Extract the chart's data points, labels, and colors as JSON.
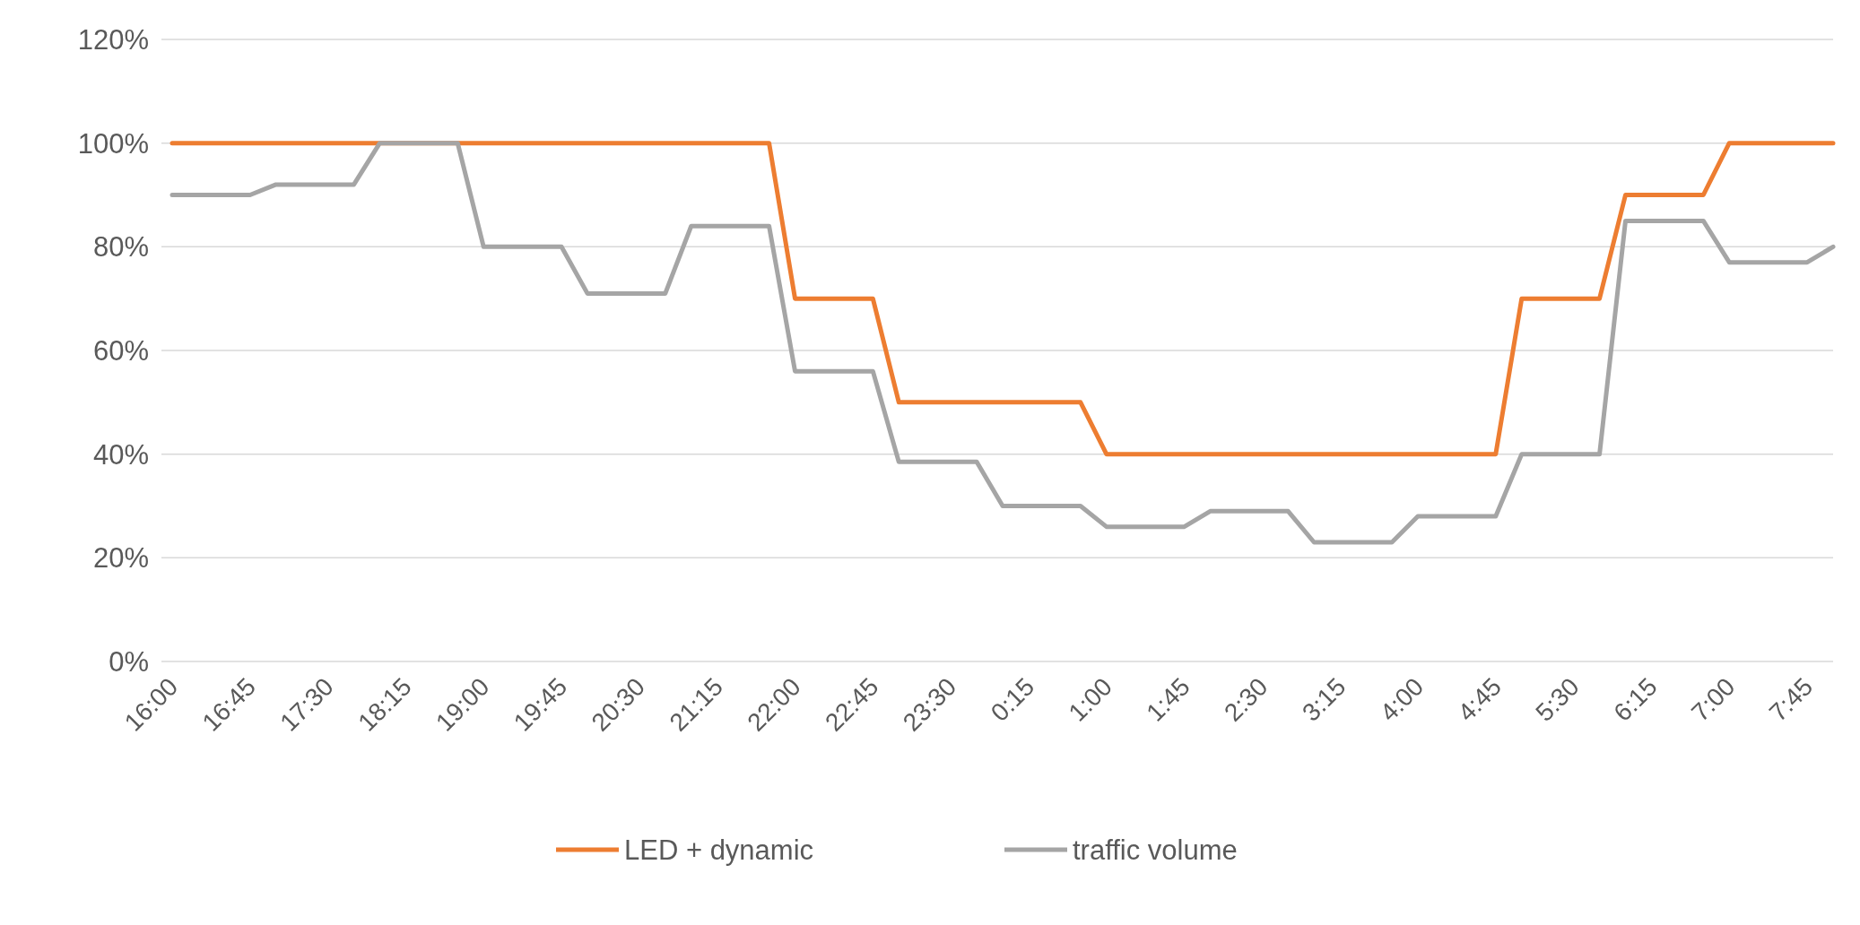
{
  "chart_data": {
    "type": "line",
    "categories": [
      "16:00",
      null,
      null,
      "16:45",
      null,
      null,
      "17:30",
      null,
      null,
      "18:15",
      null,
      null,
      "19:00",
      null,
      null,
      "19:45",
      null,
      null,
      "20:30",
      null,
      null,
      "21:15",
      null,
      null,
      "22:00",
      null,
      null,
      "22:45",
      null,
      null,
      "23:30",
      null,
      null,
      "0:15",
      null,
      null,
      "1:00",
      null,
      null,
      "1:45",
      null,
      null,
      "2:30",
      null,
      null,
      "3:15",
      null,
      null,
      "4:00",
      null,
      null,
      "4:45",
      null,
      null,
      "5:30",
      null,
      null,
      "6:15",
      null,
      null,
      "7:00",
      null,
      null,
      "7:45",
      null
    ],
    "series": [
      {
        "name": "LED + dynamic",
        "color": "#ed7d31",
        "values": [
          100,
          100,
          100,
          100,
          100,
          100,
          100,
          100,
          100,
          100,
          100,
          100,
          100,
          100,
          100,
          100,
          100,
          100,
          100,
          100,
          100,
          100,
          100,
          100,
          70,
          70,
          70,
          70,
          50,
          50,
          50,
          50,
          50,
          50,
          50,
          50,
          40,
          40,
          40,
          40,
          40,
          40,
          40,
          40,
          40,
          40,
          40,
          40,
          40,
          40,
          40,
          40,
          70,
          70,
          70,
          70,
          90,
          90,
          90,
          90,
          100,
          100,
          100,
          100,
          100
        ]
      },
      {
        "name": "traffic volume",
        "color": "#a5a5a5",
        "values": [
          90,
          90,
          90,
          90,
          92,
          92,
          92,
          92,
          100,
          100,
          100,
          100,
          80,
          80,
          80,
          80,
          71,
          71,
          71,
          71,
          84,
          84,
          84,
          84,
          56,
          56,
          56,
          56,
          38.5,
          38.5,
          38.5,
          38.5,
          30,
          30,
          30,
          30,
          26,
          26,
          26,
          26,
          29,
          29,
          29,
          29,
          23,
          23,
          23,
          23,
          28,
          28,
          28,
          28,
          40,
          40,
          40,
          40,
          85,
          85,
          85,
          85,
          77,
          77,
          77,
          77,
          80
        ]
      }
    ],
    "ylim": [
      0,
      120
    ],
    "yticks": [
      {
        "value": 0,
        "label": "0%"
      },
      {
        "value": 20,
        "label": "20%"
      },
      {
        "value": 40,
        "label": "40%"
      },
      {
        "value": 60,
        "label": "60%"
      },
      {
        "value": 80,
        "label": "80%"
      },
      {
        "value": 100,
        "label": "100%"
      },
      {
        "value": 120,
        "label": "120%"
      }
    ],
    "grid": "y",
    "legend": "bottom",
    "marker": "none",
    "line_style": "solid"
  }
}
